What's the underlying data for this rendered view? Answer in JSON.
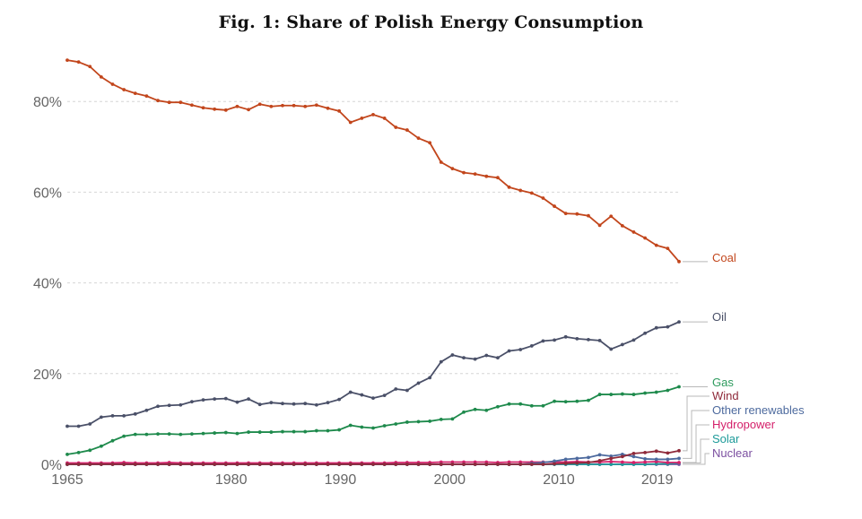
{
  "chart_data": {
    "type": "line",
    "title": "Fig. 1: Share of Polish Energy Consumption",
    "xlabel": "",
    "ylabel": "",
    "x_range": [
      1965,
      2021
    ],
    "ylim": [
      0,
      90
    ],
    "y_ticks": [
      {
        "value": 0,
        "label": "0%"
      },
      {
        "value": 20,
        "label": "20%"
      },
      {
        "value": 40,
        "label": "40%"
      },
      {
        "value": 60,
        "label": "60%"
      },
      {
        "value": 80,
        "label": "80%"
      }
    ],
    "x_ticks": [
      {
        "value": 1965,
        "label": "1965"
      },
      {
        "value": 1980,
        "label": "1980"
      },
      {
        "value": 1990,
        "label": "1990"
      },
      {
        "value": 2000,
        "label": "2000"
      },
      {
        "value": 2010,
        "label": "2010"
      },
      {
        "value": 2019,
        "label": "2019"
      }
    ],
    "grid": "horizontal-dashed",
    "legend": "right, end-of-line labels",
    "x": [
      1965,
      1966,
      1967,
      1968,
      1969,
      1970,
      1971,
      1972,
      1973,
      1974,
      1975,
      1976,
      1977,
      1978,
      1979,
      1980,
      1981,
      1982,
      1983,
      1984,
      1985,
      1986,
      1987,
      1988,
      1989,
      1990,
      1991,
      1992,
      1993,
      1994,
      1995,
      1996,
      1997,
      1998,
      1999,
      2000,
      2001,
      2002,
      2003,
      2004,
      2005,
      2006,
      2007,
      2008,
      2009,
      2010,
      2011,
      2012,
      2013,
      2014,
      2015,
      2016,
      2017,
      2018,
      2019,
      2020,
      2021
    ],
    "series": [
      {
        "name": "Coal",
        "color": "#c2461c",
        "label_color": "#c2461c",
        "values": [
          89.1,
          88.7,
          87.7,
          85.4,
          83.8,
          82.6,
          81.8,
          81.2,
          80.2,
          79.8,
          79.8,
          79.2,
          78.6,
          78.3,
          78.1,
          78.9,
          78.2,
          79.4,
          78.9,
          79.1,
          79.1,
          78.9,
          79.2,
          78.5,
          77.9,
          75.4,
          76.3,
          77.1,
          76.3,
          74.3,
          73.7,
          71.9,
          70.9,
          66.6,
          65.2,
          64.3,
          64.0,
          63.5,
          63.2,
          61.1,
          60.4,
          59.8,
          58.7,
          56.9,
          55.3,
          55.2,
          54.8,
          52.7,
          54.7,
          52.6,
          51.2,
          49.9,
          48.3,
          47.6,
          44.7,
          null,
          null
        ]
      },
      {
        "name": "Oil",
        "color": "#4a5068",
        "label_color": "#4a5068",
        "values": [
          8.4,
          8.4,
          8.9,
          10.4,
          10.7,
          10.7,
          11.1,
          11.9,
          12.8,
          13.0,
          13.1,
          13.8,
          14.2,
          14.4,
          14.5,
          13.7,
          14.4,
          13.2,
          13.6,
          13.4,
          13.3,
          13.4,
          13.1,
          13.6,
          14.3,
          15.9,
          15.3,
          14.6,
          15.2,
          16.6,
          16.3,
          17.9,
          19.1,
          22.6,
          24.1,
          23.5,
          23.2,
          24.0,
          23.5,
          25.0,
          25.3,
          26.1,
          27.2,
          27.4,
          28.1,
          27.7,
          27.5,
          27.3,
          25.4,
          26.4,
          27.4,
          28.9,
          30.1,
          30.3,
          31.4,
          null,
          null
        ]
      },
      {
        "name": "Gas",
        "color": "#1e8a4c",
        "label_color": "#2e9b5e",
        "values": [
          2.2,
          2.6,
          3.1,
          4.0,
          5.2,
          6.2,
          6.6,
          6.6,
          6.7,
          6.7,
          6.6,
          6.7,
          6.8,
          6.9,
          7.0,
          6.8,
          7.1,
          7.1,
          7.1,
          7.2,
          7.2,
          7.2,
          7.4,
          7.4,
          7.6,
          8.6,
          8.2,
          8.0,
          8.5,
          8.9,
          9.3,
          9.4,
          9.5,
          9.9,
          10.0,
          11.5,
          12.1,
          11.9,
          12.7,
          13.3,
          13.3,
          12.9,
          12.9,
          13.9,
          13.8,
          13.9,
          14.1,
          15.4,
          15.4,
          15.5,
          15.4,
          15.7,
          15.9,
          16.3,
          17.1,
          null,
          null
        ]
      },
      {
        "name": "Wind",
        "color": "#8f2a3a",
        "label_color": "#8f2a3a",
        "values": [
          0,
          0,
          0,
          0,
          0,
          0,
          0,
          0,
          0,
          0,
          0,
          0,
          0,
          0,
          0,
          0,
          0,
          0,
          0,
          0,
          0,
          0,
          0,
          0,
          0,
          0,
          0,
          0,
          0,
          0,
          0,
          0,
          0,
          0,
          0,
          0,
          0,
          0,
          0,
          0,
          0,
          0,
          0,
          0.1,
          0.2,
          0.3,
          0.4,
          0.8,
          1.3,
          1.7,
          2.4,
          2.6,
          2.9,
          2.5,
          3.0,
          null,
          null
        ]
      },
      {
        "name": "Other renewables",
        "color": "#4d6a9e",
        "label_color": "#4d6a9e",
        "values": [
          0,
          0,
          0,
          0,
          0,
          0,
          0,
          0,
          0,
          0,
          0,
          0,
          0,
          0,
          0,
          0,
          0,
          0,
          0,
          0,
          0,
          0,
          0,
          0,
          0,
          0,
          0,
          0,
          0,
          0,
          0,
          0,
          0,
          0,
          0,
          0,
          0,
          0,
          0,
          0,
          0,
          0.2,
          0.4,
          0.7,
          1.1,
          1.3,
          1.5,
          2.1,
          1.8,
          2.2,
          1.7,
          1.2,
          1.1,
          1.1,
          1.3,
          null,
          null
        ]
      },
      {
        "name": "Hydropower",
        "color": "#d4206a",
        "label_color": "#d4206a",
        "values": [
          0.3,
          0.3,
          0.3,
          0.3,
          0.3,
          0.4,
          0.3,
          0.3,
          0.3,
          0.4,
          0.3,
          0.3,
          0.3,
          0.3,
          0.3,
          0.3,
          0.3,
          0.3,
          0.3,
          0.3,
          0.3,
          0.3,
          0.3,
          0.3,
          0.3,
          0.3,
          0.3,
          0.3,
          0.3,
          0.4,
          0.4,
          0.4,
          0.4,
          0.5,
          0.5,
          0.5,
          0.5,
          0.5,
          0.4,
          0.5,
          0.5,
          0.5,
          0.5,
          0.5,
          0.5,
          0.6,
          0.5,
          0.5,
          0.6,
          0.5,
          0.4,
          0.5,
          0.6,
          0.4,
          0.4,
          null,
          null
        ]
      },
      {
        "name": "Solar",
        "color": "#1c9a99",
        "label_color": "#1c9a99",
        "values": [
          0,
          0,
          0,
          0,
          0,
          0,
          0,
          0,
          0,
          0,
          0,
          0,
          0,
          0,
          0,
          0,
          0,
          0,
          0,
          0,
          0,
          0,
          0,
          0,
          0,
          0,
          0,
          0,
          0,
          0,
          0,
          0,
          0,
          0,
          0,
          0,
          0,
          0,
          0,
          0,
          0,
          0,
          0,
          0,
          0,
          0,
          0,
          0,
          0,
          0,
          0,
          0,
          0.1,
          0.1,
          0.3,
          null,
          null
        ]
      },
      {
        "name": "Nuclear",
        "color": "#7b4fa0",
        "label_color": "#7b4fa0",
        "values": [
          0,
          0,
          0,
          0,
          0,
          0,
          0,
          0,
          0,
          0,
          0,
          0,
          0,
          0,
          0,
          0,
          0,
          0,
          0,
          0,
          0,
          0,
          0,
          0,
          0,
          0,
          0,
          0,
          0,
          0,
          0,
          0,
          0,
          0,
          0,
          0,
          0,
          0,
          0,
          0,
          0,
          0,
          0,
          0,
          0,
          0,
          0,
          0,
          0,
          0,
          0,
          0,
          0,
          0,
          0,
          null,
          null
        ]
      }
    ]
  }
}
